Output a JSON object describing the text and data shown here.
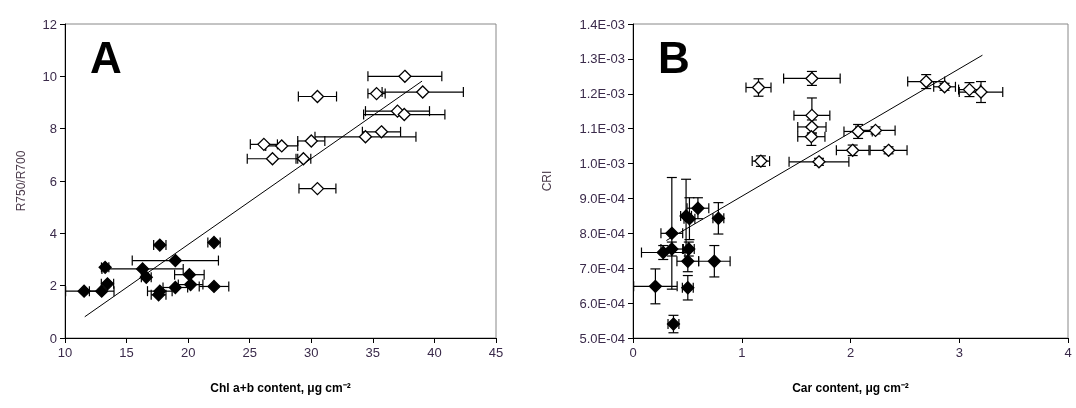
{
  "chart_data": [
    {
      "type": "scatter",
      "title": "A",
      "xlabel": "Chl a+b content, μg cm⁻²",
      "ylabel": "R750/R700",
      "xlim": [
        10,
        45
      ],
      "xticks": [
        10,
        15,
        20,
        25,
        30,
        35,
        40,
        45
      ],
      "ylim": [
        0,
        12
      ],
      "yticks": [
        0,
        2,
        4,
        6,
        8,
        10,
        12
      ],
      "grid": false,
      "marker": "diamond",
      "series": [
        {
          "color": "#000000",
          "x": [
            11.55,
            12.98,
            13.26,
            13.45,
            16.3,
            16.6,
            17.7,
            17.7,
            17.6,
            18.96,
            18.96,
            20.1,
            20.2,
            22.1,
            22.1
          ],
          "values": [
            1.79,
            1.79,
            2.7,
            2.07,
            2.64,
            2.32,
            3.55,
            1.79,
            1.65,
            2.96,
            1.93,
            2.42,
            2.04,
            3.65,
            1.97
          ],
          "xerrors": [
            1.5,
            1.0,
            0.3,
            0.5,
            3.3,
            0.4,
            0.5,
            1.0,
            0.6,
            3.5,
            1.0,
            1.2,
            1.0,
            0.5,
            1.2
          ]
        },
        {
          "color": "#ffffff",
          "x": [
            37.6,
            39.05,
            35.3,
            30.5,
            37.0,
            37.55,
            35.7,
            34.4,
            30.0,
            26.15,
            27.6,
            26.85,
            29.36,
            30.5
          ],
          "values": [
            10.0,
            9.4,
            9.34,
            9.23,
            8.67,
            8.54,
            7.88,
            7.69,
            7.53,
            7.4,
            7.34,
            6.85,
            6.85,
            5.71
          ],
          "xerrors": [
            3.0,
            3.3,
            0.7,
            1.55,
            2.6,
            3.3,
            1.55,
            4.1,
            1.1,
            1.1,
            1.3,
            2.05,
            0.6,
            1.5
          ]
        },
        {
          "type": "line",
          "color": "#000000",
          "marker": "none",
          "line_style": "solid",
          "x": [
            11.63,
            38.97
          ],
          "values": [
            0.82,
            9.81
          ]
        }
      ]
    },
    {
      "type": "scatter",
      "title": "B",
      "xlabel": "Car content, μg cm⁻²",
      "ylabel": "CRI",
      "xlim": [
        0,
        4
      ],
      "xticks": [
        0,
        1,
        2,
        3,
        4
      ],
      "ylim": [
        0.0005,
        0.0014
      ],
      "yticks": [
        {
          "value": 0.0005,
          "label": "5.0E-04"
        },
        {
          "value": 0.0006,
          "label": "6.0E-04"
        },
        {
          "value": 0.0007,
          "label": "7.0E-04"
        },
        {
          "value": 0.0008,
          "label": "8.0E-04"
        },
        {
          "value": 0.0009,
          "label": "9.0E-04"
        },
        {
          "value": 0.001,
          "label": "1.0E-03"
        },
        {
          "value": 0.0011,
          "label": "1.1E-03"
        },
        {
          "value": 0.0012,
          "label": "1.2E-03"
        },
        {
          "value": 0.0013,
          "label": "1.3E-03"
        },
        {
          "value": 0.0014,
          "label": "1.4E-03"
        }
      ],
      "grid": false,
      "marker": "diamond",
      "series": [
        {
          "color": "#000000",
          "x": [
            0.372,
            0.206,
            0.504,
            0.748,
            0.504,
            0.513,
            0.278,
            0.357,
            0.357,
            0.488,
            0.519,
            0.597,
            0.785
          ],
          "values": [
            0.00054,
            0.000648,
            0.000644,
            0.00072,
            0.00072,
            0.000755,
            0.000745,
            0.000755,
            0.0008,
            0.00085,
            0.000842,
            0.000872,
            0.000843
          ],
          "xerrors": [
            0.05,
            0.2,
            0.05,
            0.145,
            0.1,
            0.05,
            0.2,
            0.1,
            0.1,
            0.05,
            0.05,
            0.1,
            0.05
          ],
          "errors": [
            2.5e-05,
            5e-05,
            3.5e-05,
            4.5e-05,
            3e-05,
            2e-05,
            2e-05,
            2e-05,
            0.00016,
            0.000105,
            6e-05,
            3e-05,
            4.5e-05
          ]
        },
        {
          "color": "#ffffff",
          "x": [
            1.154,
            1.645,
            2.696,
            2.865,
            3.094,
            3.2,
            1.645,
            1.645,
            1.64,
            2.07,
            2.23,
            2.02,
            2.35,
            1.176,
            1.71
          ],
          "values": [
            0.001218,
            0.001244,
            0.001235,
            0.00122,
            0.001212,
            0.001205,
            0.001138,
            0.001105,
            0.001077,
            0.001092,
            0.001095,
            0.001038,
            0.001038,
            0.001007,
            0.001005
          ],
          "xerrors": [
            0.115,
            0.26,
            0.17,
            0.1,
            0.1,
            0.2,
            0.165,
            0.13,
            0.125,
            0.13,
            0.18,
            0.15,
            0.17,
            0.08,
            0.275
          ],
          "errors": [
            2.5e-05,
            2e-05,
            2e-05,
            1e-05,
            2e-05,
            3e-05,
            5e-05,
            2e-05,
            2.5e-05,
            2e-05,
            1e-05,
            1.5e-05,
            1e-05,
            1.5e-05,
            1e-05
          ]
        },
        {
          "type": "line",
          "color": "#000000",
          "marker": "none",
          "line_style": "solid",
          "x": [
            0.31,
            3.21
          ],
          "values": [
            0.00078,
            0.00131
          ]
        }
      ]
    }
  ]
}
